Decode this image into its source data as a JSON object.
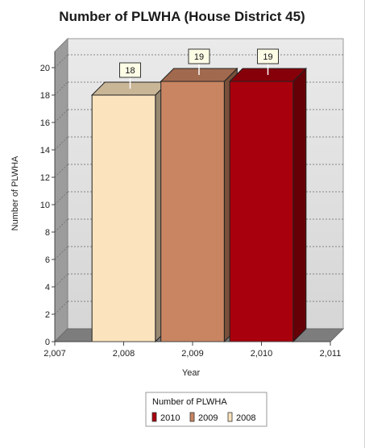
{
  "chart_data": {
    "type": "bar",
    "title": "Number of PLWHA (House District 45)",
    "xlabel": "Year",
    "ylabel": "Number of PLWHA",
    "x_ticks": [
      "2,007",
      "2,008",
      "2,009",
      "2,010",
      "2,011"
    ],
    "ylim": [
      0,
      20
    ],
    "y_ticks": [
      0,
      2,
      4,
      6,
      8,
      10,
      12,
      14,
      16,
      18,
      20
    ],
    "grid": true,
    "three_d": true,
    "series": [
      {
        "name": "2008",
        "category": "2,008",
        "value": 18,
        "label": "18",
        "color": "#fbe3bd"
      },
      {
        "name": "2009",
        "category": "2,009",
        "value": 19,
        "label": "19",
        "color": "#c98562"
      },
      {
        "name": "2010",
        "category": "2,010",
        "value": 19,
        "label": "19",
        "color": "#a8000c"
      }
    ],
    "legend": {
      "title": "Number of PLWHA",
      "position": "bottom",
      "entries": [
        "2010",
        "2009",
        "2008"
      ]
    }
  }
}
